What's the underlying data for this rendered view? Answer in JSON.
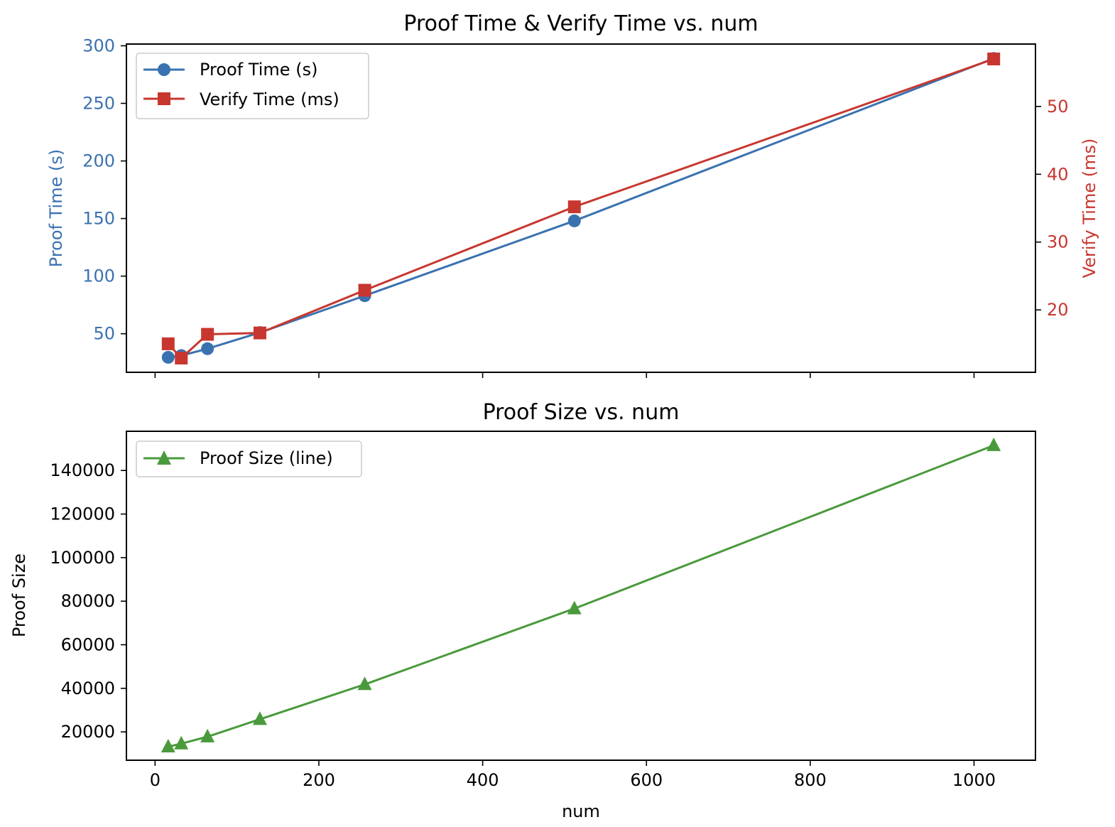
{
  "chart_data": [
    {
      "type": "line",
      "title": "Proof Time & Verify Time vs. num",
      "x": [
        16,
        32,
        64,
        128,
        256,
        512,
        1024
      ],
      "xlim": [
        -35,
        1075
      ],
      "xticks": [
        0,
        200,
        400,
        600,
        800,
        1000
      ],
      "xtick_labels_visible": false,
      "xlabel": "",
      "left_axis": {
        "label": "Proof Time (s)",
        "color": "#3a72b0",
        "ylim": [
          16.5,
          301.5
        ],
        "ticks": [
          50,
          100,
          150,
          200,
          250,
          300
        ]
      },
      "right_axis": {
        "label": "Verify Time (ms)",
        "color": "#c7372f",
        "ylim": [
          10.8,
          59.2
        ],
        "ticks": [
          20,
          30,
          40,
          50
        ]
      },
      "series": [
        {
          "name": "Proof Time (s)",
          "axis": "left",
          "marker": "circle",
          "color": "#3a72b0",
          "values": [
            29.5,
            31,
            37,
            51,
            83,
            148,
            289
          ]
        },
        {
          "name": "Verify Time (ms)",
          "axis": "right",
          "marker": "square",
          "color": "#c7372f",
          "values": [
            15,
            12.9,
            16.4,
            16.6,
            22.9,
            35.2,
            57
          ]
        }
      ],
      "legend": {
        "placement": "top-left"
      },
      "grid": false
    },
    {
      "type": "line",
      "title": "Proof Size vs. num",
      "x": [
        16,
        32,
        64,
        128,
        256,
        512,
        1024
      ],
      "xlim": [
        -35,
        1075
      ],
      "xticks": [
        0,
        200,
        400,
        600,
        800,
        1000
      ],
      "xtick_labels": [
        "0",
        "200",
        "400",
        "600",
        "800",
        "1000"
      ],
      "xlabel": "num",
      "ylabel": "Proof Size",
      "ylim": [
        7000,
        158000
      ],
      "yticks": [
        20000,
        40000,
        60000,
        80000,
        100000,
        120000,
        140000
      ],
      "series": [
        {
          "name": "Proof Size (line)",
          "marker": "triangle",
          "color": "#4a9a3c",
          "values": [
            13200,
            14600,
            17800,
            25800,
            41800,
            76600,
            151500
          ]
        }
      ],
      "legend": {
        "placement": "top-left"
      },
      "grid": false
    }
  ]
}
